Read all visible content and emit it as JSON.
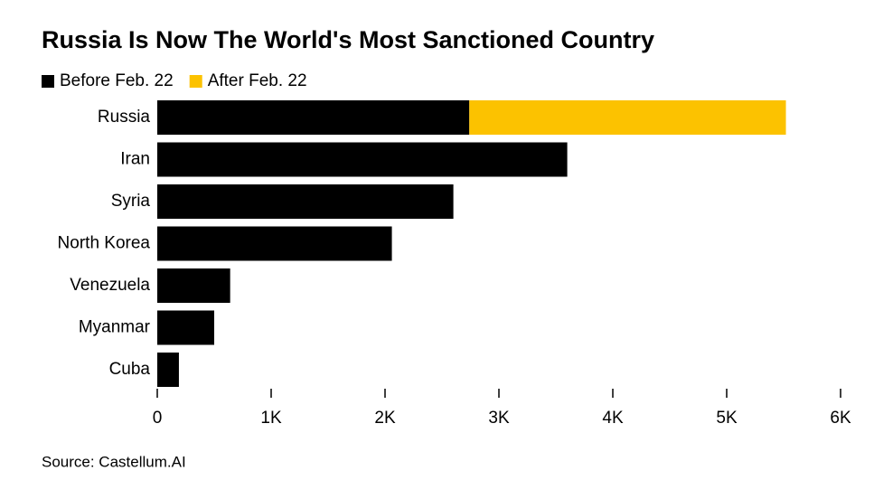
{
  "chart_data": {
    "type": "stacked-barh",
    "title": "Russia Is Now The World's Most Sanctioned Country",
    "source": "Source: Castellum.AI",
    "categories": [
      "Russia",
      "Iran",
      "Syria",
      "North Korea",
      "Venezuela",
      "Myanmar",
      "Cuba"
    ],
    "series": [
      {
        "name": "Before Feb. 22",
        "color": "#000000",
        "values": [
          2740,
          3600,
          2600,
          2060,
          640,
          500,
          190
        ]
      },
      {
        "name": "After Feb. 22",
        "color": "#fcc200",
        "values": [
          2780,
          null,
          null,
          null,
          null,
          null,
          null
        ]
      }
    ],
    "xlim": [
      0,
      6000
    ],
    "xticks": [
      0,
      {
        "value": 1000,
        "label": "1K"
      },
      {
        "value": 2000,
        "label": "2K"
      },
      {
        "value": 3000,
        "label": "3K"
      },
      {
        "value": 4000,
        "label": "4K"
      },
      {
        "value": 5000,
        "label": "5K"
      },
      {
        "value": 6000,
        "label": "6K"
      }
    ],
    "legend": "top-left"
  }
}
